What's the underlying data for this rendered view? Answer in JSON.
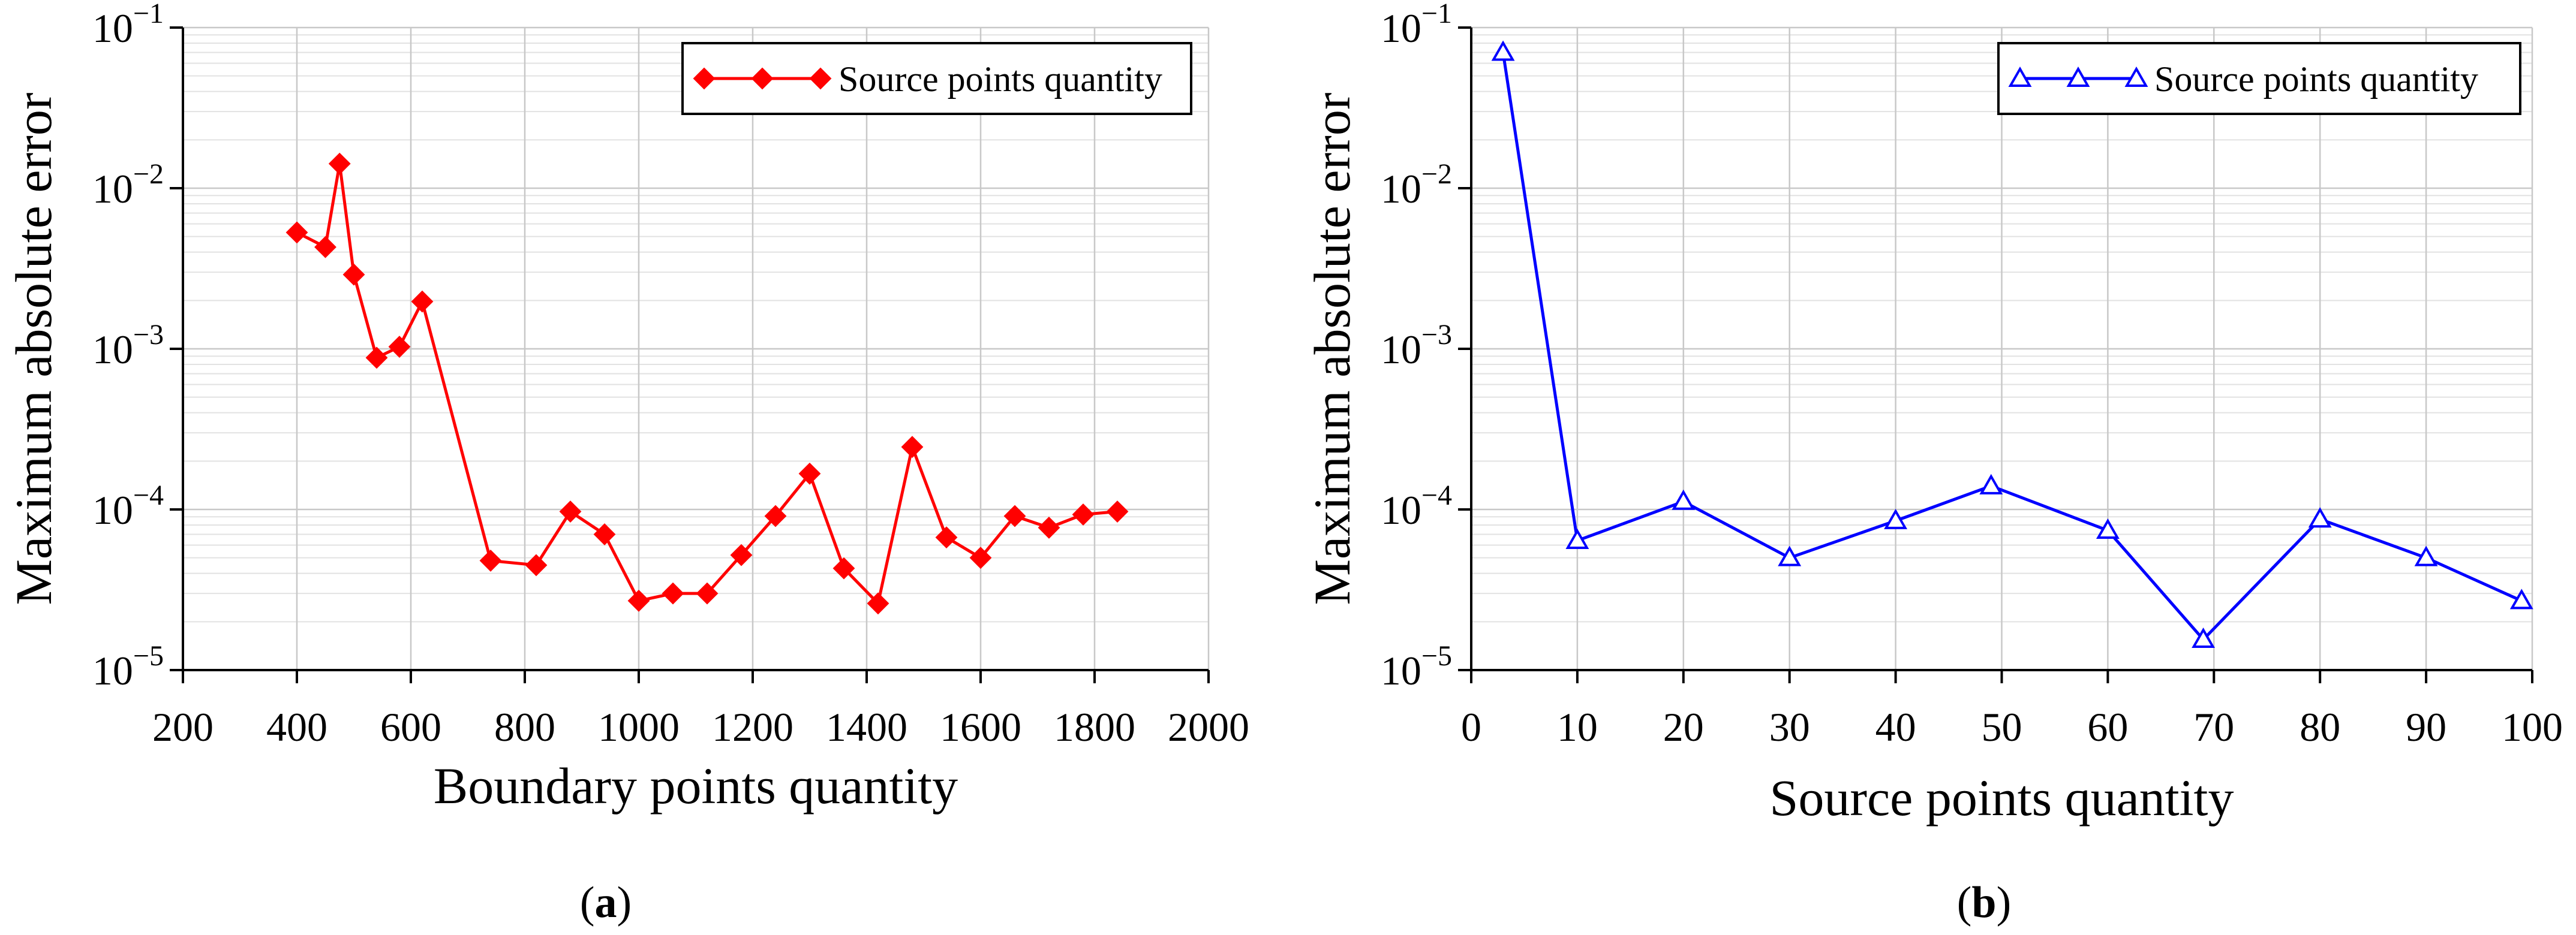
{
  "chart_data": [
    {
      "type": "line",
      "panel_label": "a",
      "title": "",
      "xlabel": "Boundary points quantity",
      "ylabel": "Maximum absolute error",
      "xlim": [
        200,
        2000
      ],
      "ylim": [
        1e-05,
        0.1
      ],
      "yscale": "log",
      "grid": true,
      "legend_position": "top-right",
      "x_ticks": [
        200,
        400,
        600,
        800,
        1000,
        1200,
        1400,
        1600,
        1800,
        2000
      ],
      "y_ticks": [
        {
          "value": 1e-05,
          "base": "10",
          "exp": "−5"
        },
        {
          "value": 0.0001,
          "base": "10",
          "exp": "−4"
        },
        {
          "value": 0.001,
          "base": "10",
          "exp": "−3"
        },
        {
          "value": 0.01,
          "base": "10",
          "exp": "−2"
        },
        {
          "value": 0.1,
          "base": "10",
          "exp": "−1"
        }
      ],
      "series": [
        {
          "name": "Source points quantity",
          "color": "#ff0000",
          "marker": "diamond",
          "x": [
            400,
            450,
            475,
            500,
            540,
            580,
            620,
            740,
            820,
            880,
            940,
            1000,
            1060,
            1120,
            1180,
            1240,
            1300,
            1360,
            1420,
            1480,
            1540,
            1600,
            1660,
            1720,
            1780,
            1840
          ],
          "y": [
            0.0053,
            0.0043,
            0.0142,
            0.0029,
            0.00088,
            0.00103,
            0.00197,
            4.8e-05,
            4.5e-05,
            9.7e-05,
            7e-05,
            2.7e-05,
            3e-05,
            3e-05,
            5.2e-05,
            9.1e-05,
            0.000167,
            4.3e-05,
            2.6e-05,
            0.000245,
            6.7e-05,
            5e-05,
            9.1e-05,
            7.7e-05,
            9.3e-05,
            9.7e-05
          ]
        }
      ]
    },
    {
      "type": "line",
      "panel_label": "b",
      "title": "",
      "xlabel": "Source points quantity",
      "ylabel": "Maximum absolute error",
      "xlim": [
        0,
        100
      ],
      "ylim": [
        1e-05,
        0.1
      ],
      "yscale": "log",
      "grid": true,
      "legend_position": "top-right",
      "x_ticks": [
        0,
        10,
        20,
        30,
        40,
        50,
        60,
        70,
        80,
        90,
        100
      ],
      "y_ticks": [
        {
          "value": 1e-05,
          "base": "10",
          "exp": "−5"
        },
        {
          "value": 0.0001,
          "base": "10",
          "exp": "−4"
        },
        {
          "value": 0.001,
          "base": "10",
          "exp": "−3"
        },
        {
          "value": 0.01,
          "base": "10",
          "exp": "−2"
        },
        {
          "value": 0.1,
          "base": "10",
          "exp": "−1"
        }
      ],
      "series": [
        {
          "name": "Source points quantity",
          "color": "#0000ff",
          "marker": "triangle-open",
          "x": [
            3,
            10,
            20,
            30,
            40,
            49,
            60,
            69,
            80,
            90,
            99
          ],
          "y": [
            0.07,
            6.4e-05,
            0.000112,
            5e-05,
            8.5e-05,
            0.00014,
            7.4e-05,
            1.55e-05,
            8.7e-05,
            5e-05,
            2.7e-05
          ]
        }
      ]
    }
  ]
}
